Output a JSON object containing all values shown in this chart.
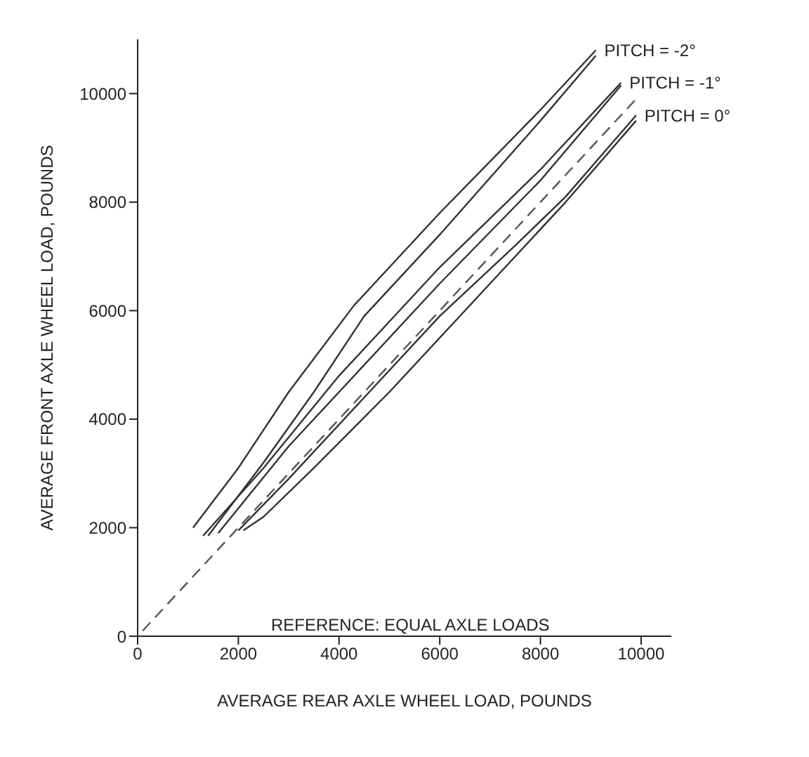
{
  "chart_data": {
    "type": "line",
    "xlabel": "AVERAGE  REAR AXLE WHEEL LOAD, POUNDS",
    "ylabel": "AVERAGE  FRONT AXLE WHEEL LOAD, POUNDS",
    "xlim": [
      0,
      10600
    ],
    "xticks": [
      0,
      2000,
      4000,
      6000,
      8000,
      10000
    ],
    "ylim": [
      0,
      11000
    ],
    "yticks": [
      0,
      2000,
      4000,
      6000,
      8000,
      10000
    ],
    "grid": false,
    "marker": "none",
    "series": [
      {
        "color": "#333333",
        "x": [
          1100,
          2000,
          3000,
          4300,
          6000,
          8000,
          9100
        ],
        "values": [
          2000,
          3100,
          4500,
          6100,
          7800,
          9700,
          10800
        ]
      },
      {
        "color": "#333333",
        "x": [
          1400,
          2500,
          3500,
          4500,
          6000,
          8000,
          9100
        ],
        "values": [
          1850,
          3200,
          4500,
          5900,
          7400,
          9500,
          10700
        ]
      },
      {
        "color": "#333333",
        "x": [
          1300,
          2500,
          4000,
          6000,
          8000,
          9600
        ],
        "values": [
          1850,
          3100,
          4800,
          6800,
          8600,
          10200
        ]
      },
      {
        "color": "#333333",
        "x": [
          1600,
          3000,
          4500,
          6000,
          8000,
          9600
        ],
        "values": [
          1900,
          3500,
          5000,
          6500,
          8400,
          10150
        ]
      },
      {
        "color": "#333333",
        "x": [
          2000,
          3000,
          4500,
          6000,
          7500,
          8500,
          9900
        ],
        "values": [
          1950,
          2900,
          4400,
          5900,
          7200,
          8100,
          9600
        ]
      },
      {
        "color": "#333333",
        "x": [
          2100,
          2500,
          3500,
          5000,
          7000,
          8500,
          9900
        ],
        "values": [
          1950,
          2200,
          3100,
          4500,
          6500,
          8000,
          9500
        ]
      },
      {
        "color": "#555555",
        "line_style": "dashed",
        "x": [
          100,
          9900
        ],
        "values": [
          100,
          9900
        ]
      }
    ],
    "annotations": [
      {
        "text": "PITCH = -2°",
        "x": 9100,
        "y": 10800
      },
      {
        "text": "PITCH = -1°",
        "x": 9600,
        "y": 10200
      },
      {
        "text": "PITCH = 0°",
        "x": 9900,
        "y": 9600
      },
      "REFERENCE: EQUAL AXLE LOADS"
    ]
  }
}
